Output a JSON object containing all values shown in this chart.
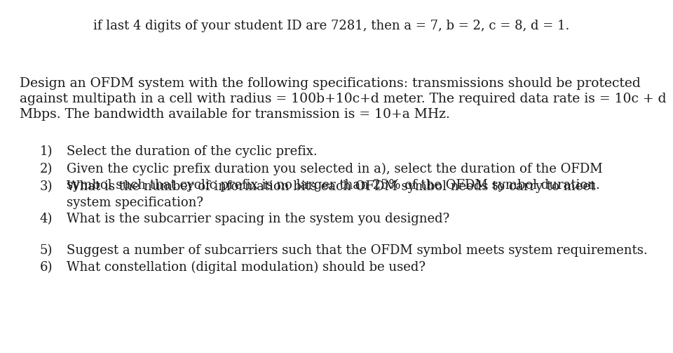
{
  "background_color": "#ffffff",
  "header_text": "if last 4 digits of your student ID are 7281, then a = 7, b = 2, c = 8, d = 1.",
  "body_lines": [
    "Design an OFDM system with the following specifications: transmissions should be protected",
    "against multipath in a cell with radius = 100b+10c+d meter. The required data rate is = 10c + d",
    "Mbps. The bandwidth available for transmission is = 10+a MHz."
  ],
  "items": [
    [
      "Select the duration of the cyclic prefix."
    ],
    [
      "Given the cyclic prefix duration you selected in a), select the duration of the OFDM",
      "symbol such that cyclic prefix is no larger than 25% of the OFDM symbol duration."
    ],
    [
      "What is the number of information bits each OFDM symbol needs to carry to meet",
      "system specification?"
    ],
    [
      "What is the subcarrier spacing in the system you designed?"
    ],
    [
      "Suggest a number of subcarriers such that the OFDM symbol meets system requirements."
    ],
    [
      "What constellation (digital modulation) should be used?"
    ]
  ],
  "font_size_header": 13.0,
  "font_size_body": 13.5,
  "font_size_items": 13.0,
  "text_color": "#1a1a1a",
  "font_family": "serif"
}
